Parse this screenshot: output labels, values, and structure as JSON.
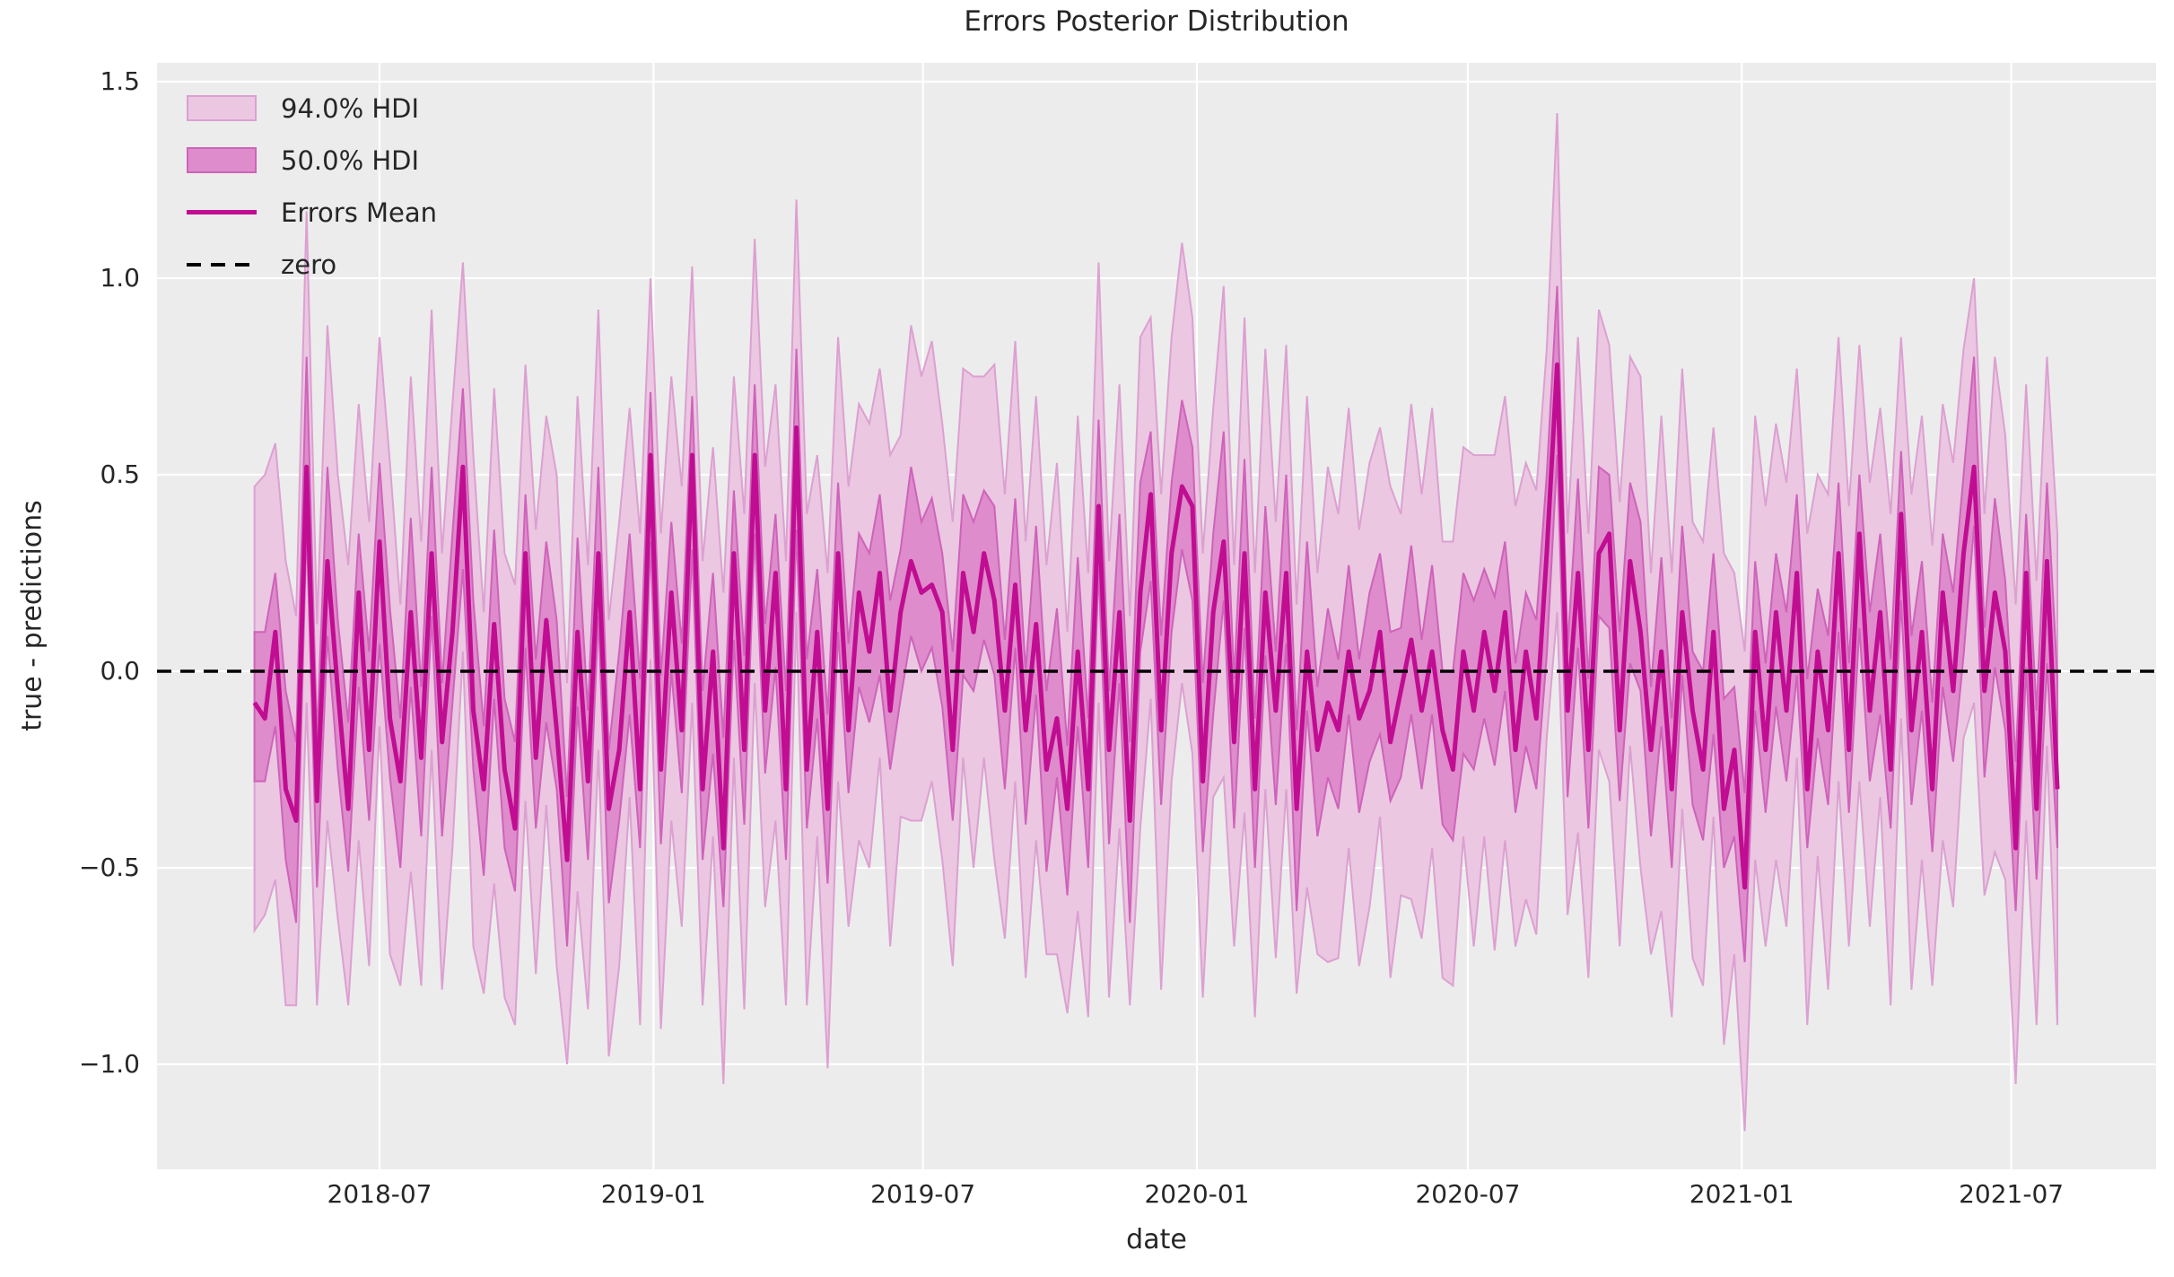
{
  "figure": {
    "title": "Errors Posterior Distribution",
    "xlabel": "date",
    "ylabel": "true - predictions"
  },
  "legend": {
    "items": [
      {
        "label": "94.0% HDI",
        "type": "patch-light"
      },
      {
        "label": "50.0% HDI",
        "type": "patch-dark"
      },
      {
        "label": "Errors Mean",
        "type": "line"
      },
      {
        "label": "zero",
        "type": "dashed-line"
      }
    ]
  },
  "colors": {
    "figure_bg": "#FFFFFF",
    "axes_bg": "#ECECEC",
    "grid": "#FFFFFF",
    "hdi94_fill": "#EBC7E2",
    "hdi94_edge": "#DCA0D1",
    "hdi50_fill": "#DE8CCB",
    "hdi50_edge": "#CE63BA",
    "mean_line": "#C00D92",
    "zero_line": "#000000",
    "text": "#262626"
  },
  "chart_data": {
    "type": "line",
    "title": "Errors Posterior Distribution",
    "xlabel": "date",
    "ylabel": "true - predictions",
    "legend_position": "upper left",
    "grid": true,
    "ylim": [
      -1.27,
      1.55
    ],
    "zero_reference": 0.0,
    "y_ticks": [
      {
        "label": "1.5",
        "value": 1.5
      },
      {
        "label": "1.0",
        "value": 1.0
      },
      {
        "label": "0.5",
        "value": 0.5
      },
      {
        "label": "0.0",
        "value": 0.0
      },
      {
        "label": "−0.5",
        "value": -0.5
      },
      {
        "label": "−1.0",
        "value": -1.0
      }
    ],
    "x_ticks": [
      {
        "label": "2018-07",
        "date": "2018-07-01"
      },
      {
        "label": "2019-01",
        "date": "2019-01-01"
      },
      {
        "label": "2019-07",
        "date": "2019-07-01"
      },
      {
        "label": "2020-01",
        "date": "2020-01-01"
      },
      {
        "label": "2020-07",
        "date": "2020-07-01"
      },
      {
        "label": "2021-01",
        "date": "2021-01-01"
      },
      {
        "label": "2021-07",
        "date": "2021-07-01"
      }
    ],
    "x_dates": [
      "2018-04-08",
      "2018-04-15",
      "2018-04-22",
      "2018-04-29",
      "2018-05-06",
      "2018-05-13",
      "2018-05-20",
      "2018-05-27",
      "2018-06-03",
      "2018-06-10",
      "2018-06-17",
      "2018-06-24",
      "2018-07-01",
      "2018-07-08",
      "2018-07-15",
      "2018-07-22",
      "2018-07-29",
      "2018-08-05",
      "2018-08-12",
      "2018-08-19",
      "2018-08-26",
      "2018-09-02",
      "2018-09-09",
      "2018-09-16",
      "2018-09-23",
      "2018-09-30",
      "2018-10-07",
      "2018-10-14",
      "2018-10-21",
      "2018-10-28",
      "2018-11-04",
      "2018-11-11",
      "2018-11-18",
      "2018-11-25",
      "2018-12-02",
      "2018-12-09",
      "2018-12-16",
      "2018-12-23",
      "2018-12-30",
      "2019-01-06",
      "2019-01-13",
      "2019-01-20",
      "2019-01-27",
      "2019-02-03",
      "2019-02-10",
      "2019-02-17",
      "2019-02-24",
      "2019-03-03",
      "2019-03-10",
      "2019-03-17",
      "2019-03-24",
      "2019-03-31",
      "2019-04-07",
      "2019-04-14",
      "2019-04-21",
      "2019-04-28",
      "2019-05-05",
      "2019-05-12",
      "2019-05-19",
      "2019-05-26",
      "2019-06-02",
      "2019-06-09",
      "2019-06-16",
      "2019-06-23",
      "2019-06-30",
      "2019-07-07",
      "2019-07-14",
      "2019-07-21",
      "2019-07-28",
      "2019-08-04",
      "2019-08-11",
      "2019-08-18",
      "2019-08-25",
      "2019-09-01",
      "2019-09-08",
      "2019-09-15",
      "2019-09-22",
      "2019-09-29",
      "2019-10-06",
      "2019-10-13",
      "2019-10-20",
      "2019-10-27",
      "2019-11-03",
      "2019-11-10",
      "2019-11-17",
      "2019-11-24",
      "2019-12-01",
      "2019-12-08",
      "2019-12-15",
      "2019-12-22",
      "2019-12-29",
      "2020-01-05",
      "2020-01-12",
      "2020-01-19",
      "2020-01-26",
      "2020-02-02",
      "2020-02-09",
      "2020-02-16",
      "2020-02-23",
      "2020-03-01",
      "2020-03-08",
      "2020-03-15",
      "2020-03-22",
      "2020-03-29",
      "2020-04-05",
      "2020-04-12",
      "2020-04-19",
      "2020-04-26",
      "2020-05-03",
      "2020-05-10",
      "2020-05-17",
      "2020-05-24",
      "2020-05-31",
      "2020-06-07",
      "2020-06-14",
      "2020-06-21",
      "2020-06-28",
      "2020-07-05",
      "2020-07-12",
      "2020-07-19",
      "2020-07-26",
      "2020-08-02",
      "2020-08-09",
      "2020-08-16",
      "2020-08-23",
      "2020-08-30",
      "2020-09-06",
      "2020-09-13",
      "2020-09-20",
      "2020-09-27",
      "2020-10-04",
      "2020-10-11",
      "2020-10-18",
      "2020-10-25",
      "2020-11-01",
      "2020-11-08",
      "2020-11-15",
      "2020-11-22",
      "2020-11-29",
      "2020-12-06",
      "2020-12-13",
      "2020-12-20",
      "2020-12-27",
      "2021-01-03",
      "2021-01-10",
      "2021-01-17",
      "2021-01-24",
      "2021-01-31",
      "2021-02-07",
      "2021-02-14",
      "2021-02-21",
      "2021-02-28",
      "2021-03-07",
      "2021-03-14",
      "2021-03-21",
      "2021-03-28",
      "2021-04-04",
      "2021-04-11",
      "2021-04-18",
      "2021-04-25",
      "2021-05-02",
      "2021-05-09",
      "2021-05-16",
      "2021-05-23",
      "2021-05-30",
      "2021-06-06",
      "2021-06-13",
      "2021-06-20",
      "2021-06-27",
      "2021-07-04",
      "2021-07-11",
      "2021-07-18",
      "2021-07-25",
      "2021-08-01"
    ],
    "series": {
      "mean": [
        -0.08,
        -0.12,
        0.1,
        -0.3,
        -0.38,
        0.52,
        -0.33,
        0.28,
        -0.05,
        -0.35,
        0.2,
        -0.2,
        0.33,
        -0.12,
        -0.28,
        0.15,
        -0.22,
        0.3,
        -0.18,
        0.1,
        0.52,
        -0.1,
        -0.3,
        0.12,
        -0.25,
        -0.4,
        0.3,
        -0.22,
        0.13,
        -0.15,
        -0.48,
        0.1,
        -0.28,
        0.3,
        -0.35,
        -0.2,
        0.15,
        -0.3,
        0.55,
        -0.25,
        0.2,
        -0.15,
        0.55,
        -0.3,
        0.05,
        -0.45,
        0.3,
        -0.2,
        0.55,
        -0.1,
        0.25,
        -0.3,
        0.62,
        -0.25,
        0.1,
        -0.35,
        0.3,
        -0.15,
        0.2,
        0.05,
        0.25,
        -0.1,
        0.15,
        0.28,
        0.2,
        0.22,
        0.15,
        -0.2,
        0.25,
        0.1,
        0.3,
        0.18,
        -0.1,
        0.22,
        -0.15,
        0.12,
        -0.25,
        -0.12,
        -0.35,
        0.05,
        -0.3,
        0.42,
        -0.2,
        0.15,
        -0.38,
        0.2,
        0.45,
        -0.15,
        0.3,
        0.47,
        0.42,
        -0.28,
        0.15,
        0.33,
        -0.18,
        0.3,
        -0.3,
        0.2,
        -0.1,
        0.25,
        -0.35,
        0.05,
        -0.2,
        -0.08,
        -0.15,
        0.05,
        -0.12,
        -0.05,
        0.1,
        -0.18,
        -0.05,
        0.08,
        -0.1,
        0.05,
        -0.15,
        -0.25,
        0.05,
        -0.1,
        0.1,
        -0.05,
        0.15,
        -0.2,
        0.05,
        -0.12,
        0.3,
        0.78,
        -0.1,
        0.25,
        -0.2,
        0.3,
        0.35,
        -0.15,
        0.28,
        0.1,
        -0.2,
        0.05,
        -0.3,
        0.15,
        -0.1,
        -0.25,
        0.1,
        -0.35,
        -0.2,
        -0.55,
        0.1,
        -0.2,
        0.15,
        -0.1,
        0.25,
        -0.3,
        0.05,
        -0.15,
        0.3,
        -0.2,
        0.35,
        -0.1,
        0.15,
        -0.25,
        0.4,
        -0.15,
        0.1,
        -0.3,
        0.2,
        -0.05,
        0.3,
        0.52,
        -0.05,
        0.2,
        0.05,
        -0.45,
        0.25,
        -0.35,
        0.28,
        -0.3
      ],
      "hdi94_upper": [
        0.47,
        0.5,
        0.58,
        0.28,
        0.14,
        1.17,
        0.12,
        0.88,
        0.5,
        0.27,
        0.68,
        0.38,
        0.85,
        0.53,
        0.17,
        0.75,
        0.33,
        0.92,
        0.3,
        0.68,
        1.04,
        0.55,
        0.15,
        0.72,
        0.3,
        0.22,
        0.78,
        0.36,
        0.65,
        0.5,
        -0.03,
        0.7,
        0.27,
        0.92,
        0.13,
        0.38,
        0.67,
        0.35,
        1.0,
        0.35,
        0.75,
        0.47,
        1.03,
        0.28,
        0.57,
        0.2,
        0.75,
        0.4,
        1.1,
        0.52,
        0.73,
        0.28,
        1.2,
        0.4,
        0.55,
        0.25,
        0.85,
        0.47,
        0.68,
        0.63,
        0.77,
        0.55,
        0.6,
        0.88,
        0.75,
        0.84,
        0.63,
        0.38,
        0.77,
        0.75,
        0.75,
        0.78,
        0.45,
        0.84,
        0.33,
        0.7,
        0.27,
        0.53,
        0.1,
        0.65,
        0.25,
        1.04,
        0.28,
        0.73,
        0.14,
        0.85,
        0.9,
        0.45,
        0.85,
        1.09,
        0.9,
        0.3,
        0.67,
        0.98,
        0.27,
        0.9,
        0.25,
        0.82,
        0.38,
        0.83,
        0.17,
        0.7,
        0.25,
        0.52,
        0.4,
        0.67,
        0.36,
        0.53,
        0.62,
        0.47,
        0.4,
        0.68,
        0.45,
        0.67,
        0.33,
        0.33,
        0.57,
        0.55,
        0.55,
        0.55,
        0.7,
        0.42,
        0.53,
        0.46,
        0.82,
        1.42,
        0.35,
        0.85,
        0.35,
        0.92,
        0.83,
        0.43,
        0.8,
        0.75,
        0.25,
        0.65,
        0.25,
        0.77,
        0.38,
        0.33,
        0.62,
        0.3,
        0.25,
        0.05,
        0.65,
        0.42,
        0.63,
        0.48,
        0.77,
        0.35,
        0.5,
        0.45,
        0.85,
        0.42,
        0.83,
        0.48,
        0.67,
        0.4,
        0.85,
        0.45,
        0.65,
        0.32,
        0.68,
        0.53,
        0.82,
        1.0,
        0.4,
        0.8,
        0.6,
        0.17,
        0.73,
        0.23,
        0.8,
        0.35
      ],
      "hdi94_lower": [
        -0.66,
        -0.62,
        -0.53,
        -0.85,
        -0.85,
        -0.08,
        -0.85,
        -0.38,
        -0.63,
        -0.85,
        -0.43,
        -0.75,
        -0.14,
        -0.72,
        -0.8,
        -0.51,
        -0.8,
        -0.2,
        -0.81,
        -0.45,
        0.05,
        -0.7,
        -0.82,
        -0.54,
        -0.83,
        -0.9,
        -0.33,
        -0.77,
        -0.34,
        -0.75,
        -1.0,
        -0.56,
        -0.86,
        -0.2,
        -0.98,
        -0.75,
        -0.32,
        -0.9,
        0.03,
        -0.91,
        -0.38,
        -0.65,
        -0.08,
        -0.85,
        -0.42,
        -1.05,
        -0.22,
        -0.86,
        -0.03,
        -0.6,
        -0.38,
        -0.85,
        0.15,
        -0.85,
        -0.42,
        -1.01,
        -0.28,
        -0.65,
        -0.43,
        -0.5,
        -0.22,
        -0.7,
        -0.37,
        -0.38,
        -0.38,
        -0.28,
        -0.48,
        -0.75,
        -0.22,
        -0.5,
        -0.22,
        -0.48,
        -0.68,
        -0.28,
        -0.78,
        -0.43,
        -0.72,
        -0.72,
        -0.87,
        -0.61,
        -0.88,
        -0.08,
        -0.83,
        -0.4,
        -0.85,
        -0.4,
        -0.07,
        -0.81,
        -0.28,
        -0.03,
        -0.21,
        -0.83,
        -0.32,
        -0.27,
        -0.7,
        -0.36,
        -0.88,
        -0.3,
        -0.73,
        -0.3,
        -0.82,
        -0.55,
        -0.72,
        -0.74,
        -0.73,
        -0.45,
        -0.75,
        -0.6,
        -0.37,
        -0.78,
        -0.57,
        -0.58,
        -0.68,
        -0.45,
        -0.78,
        -0.8,
        -0.42,
        -0.7,
        -0.42,
        -0.71,
        -0.43,
        -0.7,
        -0.58,
        -0.67,
        -0.17,
        0.15,
        -0.62,
        -0.41,
        -0.78,
        -0.2,
        -0.28,
        -0.7,
        -0.19,
        -0.5,
        -0.72,
        -0.61,
        -0.88,
        -0.35,
        -0.73,
        -0.8,
        -0.37,
        -0.95,
        -0.72,
        -1.17,
        -0.48,
        -0.7,
        -0.48,
        -0.65,
        -0.22,
        -0.9,
        -0.47,
        -0.81,
        -0.28,
        -0.7,
        -0.28,
        -0.65,
        -0.32,
        -0.85,
        -0.12,
        -0.81,
        -0.48,
        -0.8,
        -0.43,
        -0.6,
        -0.17,
        -0.08,
        -0.57,
        -0.46,
        -0.53,
        -1.05,
        -0.38,
        -0.9,
        -0.19,
        -0.9
      ],
      "hdi50_upper": [
        0.1,
        0.1,
        0.25,
        -0.05,
        -0.18,
        0.8,
        -0.17,
        0.52,
        0.13,
        -0.13,
        0.35,
        0.05,
        0.53,
        0.16,
        -0.12,
        0.39,
        -0.04,
        0.52,
        -0.03,
        0.35,
        0.72,
        0.18,
        -0.14,
        0.36,
        -0.07,
        -0.18,
        0.45,
        0.03,
        0.33,
        0.13,
        -0.32,
        0.34,
        -0.1,
        0.52,
        -0.2,
        0.05,
        0.35,
        -0.02,
        0.71,
        -0.01,
        0.38,
        0.07,
        0.7,
        -0.05,
        0.25,
        -0.17,
        0.46,
        0.04,
        0.73,
        0.12,
        0.4,
        -0.05,
        0.82,
        0.03,
        0.26,
        -0.11,
        0.48,
        0.07,
        0.35,
        0.3,
        0.45,
        0.18,
        0.31,
        0.52,
        0.38,
        0.44,
        0.3,
        0.05,
        0.45,
        0.38,
        0.46,
        0.42,
        0.08,
        0.44,
        0.0,
        0.37,
        -0.05,
        0.16,
        -0.19,
        0.29,
        -0.12,
        0.64,
        -0.05,
        0.4,
        -0.18,
        0.48,
        0.61,
        0.09,
        0.48,
        0.69,
        0.57,
        -0.03,
        0.35,
        0.61,
        -0.02,
        0.54,
        -0.12,
        0.42,
        0.05,
        0.5,
        -0.15,
        0.33,
        -0.04,
        0.16,
        0.03,
        0.27,
        0.03,
        0.2,
        0.3,
        0.1,
        0.11,
        0.32,
        0.08,
        0.27,
        0.0,
        0.0,
        0.25,
        0.18,
        0.26,
        0.19,
        0.33,
        0.02,
        0.2,
        0.13,
        0.5,
        0.98,
        0.06,
        0.49,
        -0.02,
        0.52,
        0.5,
        0.1,
        0.48,
        0.38,
        -0.04,
        0.29,
        -0.12,
        0.37,
        0.05,
        0.0,
        0.3,
        -0.07,
        -0.04,
        -0.31,
        0.28,
        0.02,
        0.3,
        0.15,
        0.45,
        -0.02,
        0.21,
        0.09,
        0.48,
        0.02,
        0.5,
        0.15,
        0.35,
        0.03,
        0.56,
        0.09,
        0.28,
        -0.08,
        0.35,
        0.2,
        0.5,
        0.8,
        0.11,
        0.44,
        0.23,
        -0.23,
        0.4,
        -0.1,
        0.48,
        -0.02
      ],
      "hdi50_lower": [
        -0.28,
        -0.28,
        -0.14,
        -0.48,
        -0.64,
        0.37,
        -0.55,
        0.09,
        -0.25,
        -0.51,
        -0.04,
        -0.38,
        0.07,
        -0.27,
        -0.5,
        -0.04,
        -0.42,
        0.14,
        -0.42,
        -0.08,
        0.26,
        -0.25,
        -0.52,
        -0.07,
        -0.45,
        -0.56,
        0.06,
        -0.4,
        -0.13,
        -0.3,
        -0.7,
        -0.09,
        -0.48,
        0.14,
        -0.59,
        -0.38,
        -0.11,
        -0.45,
        0.33,
        -0.44,
        0.0,
        -0.31,
        0.31,
        -0.48,
        -0.21,
        -0.6,
        0.08,
        -0.39,
        0.35,
        -0.26,
        0.01,
        -0.48,
        0.36,
        -0.4,
        -0.12,
        -0.54,
        0.1,
        -0.31,
        -0.04,
        -0.13,
        -0.01,
        -0.25,
        -0.07,
        0.09,
        0.0,
        0.06,
        -0.09,
        -0.38,
        -0.01,
        -0.05,
        0.08,
        -0.01,
        -0.3,
        0.06,
        -0.39,
        -0.06,
        -0.51,
        -0.27,
        -0.57,
        -0.14,
        -0.5,
        0.26,
        -0.44,
        -0.03,
        -0.64,
        0.05,
        0.23,
        -0.34,
        0.1,
        0.31,
        0.18,
        -0.46,
        -0.11,
        0.18,
        -0.4,
        0.11,
        -0.5,
        0.04,
        -0.34,
        0.07,
        -0.61,
        -0.1,
        -0.42,
        -0.27,
        -0.35,
        -0.11,
        -0.36,
        -0.23,
        -0.16,
        -0.33,
        -0.27,
        -0.11,
        -0.3,
        -0.11,
        -0.39,
        -0.43,
        -0.21,
        -0.25,
        -0.12,
        -0.24,
        -0.05,
        -0.36,
        -0.19,
        -0.3,
        0.04,
        0.55,
        -0.32,
        0.06,
        -0.4,
        0.14,
        0.11,
        -0.33,
        0.02,
        -0.05,
        -0.42,
        -0.14,
        -0.5,
        -0.01,
        -0.34,
        -0.43,
        -0.16,
        -0.5,
        -0.42,
        -0.74,
        -0.1,
        -0.36,
        -0.09,
        -0.28,
        -0.01,
        -0.45,
        -0.17,
        -0.34,
        0.1,
        -0.36,
        0.11,
        -0.28,
        -0.11,
        -0.4,
        0.18,
        -0.34,
        -0.1,
        -0.46,
        -0.04,
        -0.23,
        0.04,
        0.37,
        -0.27,
        0.01,
        -0.15,
        -0.61,
        0.01,
        -0.53,
        0.02,
        -0.45
      ]
    }
  }
}
